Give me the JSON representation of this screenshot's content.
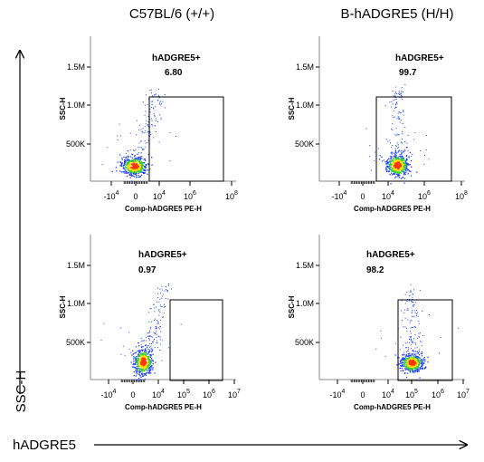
{
  "figure": {
    "column_headers": [
      "C57BL/6 (+/+)",
      "B-hADGRE5 (H/H)"
    ],
    "outer_y_label": "SSC-H",
    "outer_x_label": "hADGRE5",
    "colors": {
      "low": "#1f3cff",
      "mid": "#33cc33",
      "high": "#ffdd00",
      "peak": "#ff3300"
    }
  },
  "chart_data": [
    {
      "type": "scatter",
      "column": "C57BL/6 (+/+)",
      "xlabel": "Comp-hADGRE5 PE-H",
      "ylabel": "SSC-H",
      "x_scale": "biexponential",
      "y_scale": "linear",
      "x_ticks": [
        "-10^4",
        "0",
        "10^4",
        "10^6",
        "10^8"
      ],
      "y_ticks": [
        "500K",
        "1.0M",
        "1.5M"
      ],
      "gate": {
        "label": "hADGRE5+",
        "percent": "6.80"
      },
      "population": {
        "median_x": "~0 (negative)",
        "median_y_K": 200
      }
    },
    {
      "type": "scatter",
      "column": "B-hADGRE5 (H/H)",
      "xlabel": "Comp-hADGRE5 PE-H",
      "ylabel": "SSC-H",
      "x_scale": "biexponential",
      "y_scale": "linear",
      "x_ticks": [
        "-10^4",
        "0",
        "10^4",
        "10^6",
        "10^8"
      ],
      "y_ticks": [
        "500K",
        "1.0M",
        "1.5M"
      ],
      "gate": {
        "label": "hADGRE5+",
        "percent": "99.7"
      },
      "population": {
        "median_x": "~10^4.5 (positive)",
        "median_y_K": 200
      }
    },
    {
      "type": "scatter",
      "column": "C57BL/6 (+/+)",
      "xlabel": "Comp-hADGRE5 PE-H",
      "ylabel": "SSC-H",
      "x_scale": "biexponential",
      "y_scale": "linear",
      "x_ticks": [
        "-10^4",
        "0",
        "10^4",
        "10^5",
        "10^6",
        "10^7"
      ],
      "y_ticks": [
        "500K",
        "1.0M",
        "1.5M"
      ],
      "gate": {
        "label": "hADGRE5+",
        "percent": "0.97"
      },
      "population": {
        "median_x": "~0 (negative)",
        "median_y_K": 200
      }
    },
    {
      "type": "scatter",
      "column": "B-hADGRE5 (H/H)",
      "xlabel": "Comp-hADGRE5 PE-H",
      "ylabel": "SSC-H",
      "x_scale": "biexponential",
      "y_scale": "linear",
      "x_ticks": [
        "-10^4",
        "0",
        "10^4",
        "10^5",
        "10^6",
        "10^7"
      ],
      "y_ticks": [
        "500K",
        "1.0M",
        "1.5M"
      ],
      "gate": {
        "label": "hADGRE5+",
        "percent": "98.2"
      },
      "population": {
        "median_x": "~10^4.5 (positive)",
        "median_y_K": 200
      }
    }
  ]
}
